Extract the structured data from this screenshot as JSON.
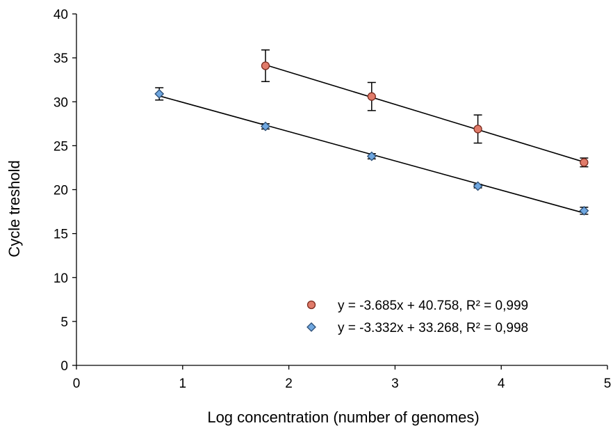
{
  "chart_data": {
    "type": "scatter",
    "xlabel": "Log concentration (number of genomes)",
    "ylabel": "Cycle treshold",
    "xlim": [
      0,
      5
    ],
    "ylim": [
      0,
      40
    ],
    "xticks": [
      "0",
      "1",
      "2",
      "3",
      "4",
      "5"
    ],
    "yticks": [
      "0",
      "5",
      "10",
      "15",
      "20",
      "25",
      "30",
      "35",
      "40"
    ],
    "grid": false,
    "legend_position": "bottom-right",
    "series": [
      {
        "name": "y = -3.685x + 40.758, R² = 0,999",
        "marker": "circle",
        "color": "#e07b6a",
        "edge_color": "#7a2a1e",
        "points": [
          {
            "x": 1.78,
            "y": 34.1,
            "err": 1.8
          },
          {
            "x": 2.78,
            "y": 30.6,
            "err": 1.6
          },
          {
            "x": 3.78,
            "y": 26.9,
            "err": 1.6
          },
          {
            "x": 4.78,
            "y": 23.1,
            "err": 0.5
          }
        ],
        "fit": {
          "slope": -3.685,
          "intercept": 40.758,
          "x_range": [
            1.78,
            4.78
          ]
        }
      },
      {
        "name": "y = -3.332x + 33.268, R² = 0,998",
        "marker": "diamond",
        "color": "#6fa7e0",
        "edge_color": "#2c4d73",
        "points": [
          {
            "x": 0.78,
            "y": 30.9,
            "err": 0.7
          },
          {
            "x": 1.78,
            "y": 27.2,
            "err": 0.3
          },
          {
            "x": 2.78,
            "y": 23.8,
            "err": 0.3
          },
          {
            "x": 3.78,
            "y": 20.4,
            "err": 0.2
          },
          {
            "x": 4.78,
            "y": 17.6,
            "err": 0.4
          }
        ],
        "fit": {
          "slope": -3.332,
          "intercept": 33.268,
          "x_range": [
            0.78,
            4.78
          ]
        }
      }
    ]
  }
}
